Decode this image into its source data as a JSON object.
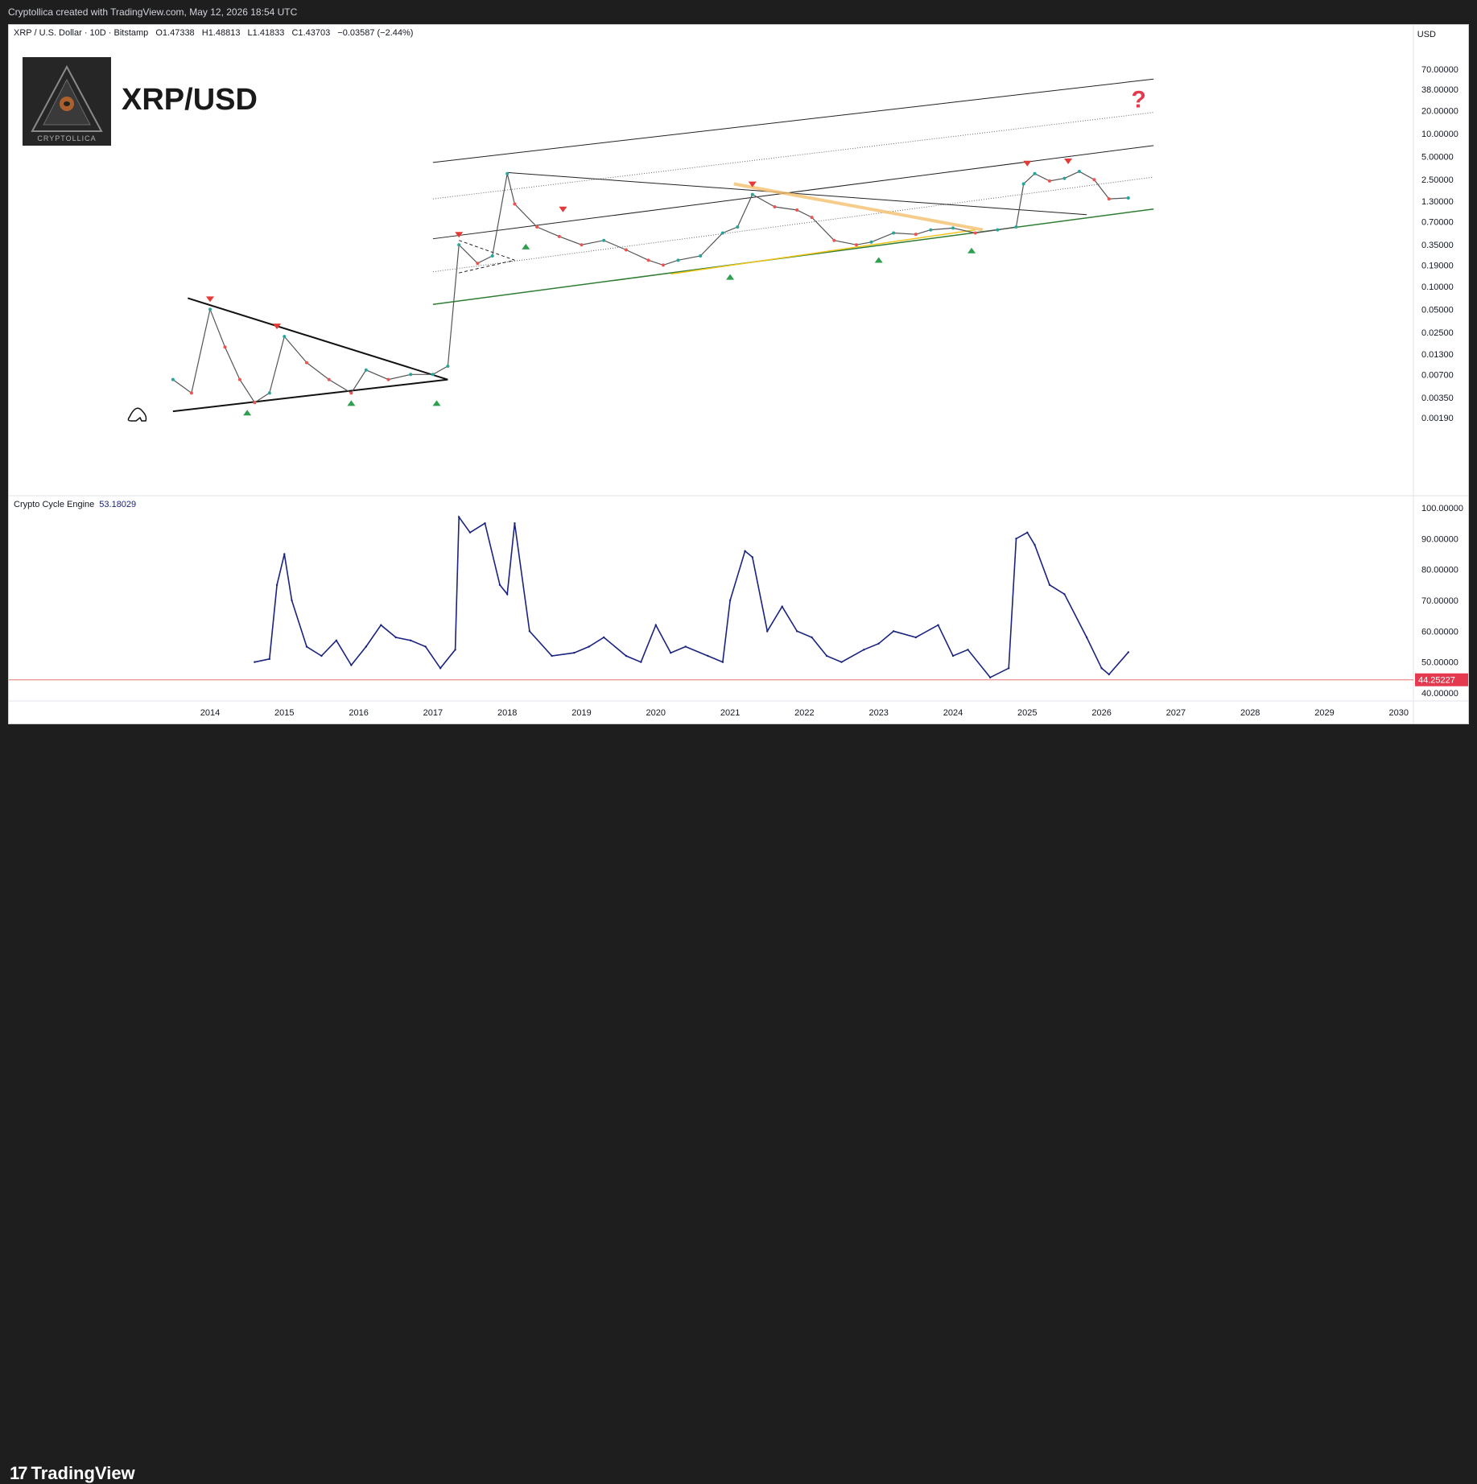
{
  "header": {
    "credit": "Cryptollica created with TradingView.com, May 12, 2026 18:54 UTC"
  },
  "symbol": {
    "name": "XRP / U.S. Dollar · 10D · Bitstamp",
    "open": "O1.47338",
    "high": "H1.48813",
    "low": "L1.41833",
    "close": "C1.43703",
    "change": "−0.03587 (−2.44%)"
  },
  "currency": "USD",
  "brand": {
    "title": "XRP/USD",
    "logo_text": "CRYPTOLLICA"
  },
  "annotation": {
    "question_mark": "?"
  },
  "colors": {
    "up": "#26a69a",
    "down": "#ef5350",
    "oscillator": "#1a237e",
    "baseline": "#e57373",
    "orange_trend": "#f5c06e",
    "support_green": "#2e7d32",
    "arrow_up": "#2e9e4f",
    "arrow_down": "#e53935"
  },
  "oscillator": {
    "name": "Crypto Cycle Engine",
    "value": "53.18029",
    "baseline_label": "44.25227"
  },
  "footer": {
    "brand": "TradingView"
  },
  "chart_data": [
    {
      "type": "line",
      "title": "XRP / U.S. Dollar · 10D · Bitstamp",
      "y_scale": "log",
      "ylim": [
        0.0015,
        70
      ],
      "ytick_labels": [
        "0.00190",
        "0.00350",
        "0.00700",
        "0.01300",
        "0.02500",
        "0.05000",
        "0.10000",
        "0.19000",
        "0.35000",
        "0.70000",
        "1.30000",
        "2.50000",
        "5.00000",
        "10.00000",
        "20.00000",
        "38.00000",
        "70.00000"
      ],
      "xtick_labels": [
        "2014",
        "2015",
        "2016",
        "2017",
        "2018",
        "2019",
        "2020",
        "2021",
        "2022",
        "2023",
        "2024",
        "2025",
        "2026",
        "2027",
        "2028",
        "2029",
        "2030"
      ],
      "series": [
        {
          "name": "XRP/USD",
          "x": [
            2013.5,
            2013.75,
            2014.0,
            2014.2,
            2014.4,
            2014.6,
            2014.8,
            2015.0,
            2015.3,
            2015.6,
            2015.9,
            2016.1,
            2016.4,
            2016.7,
            2017.0,
            2017.2,
            2017.35,
            2017.6,
            2017.8,
            2018.0,
            2018.1,
            2018.4,
            2018.7,
            2019.0,
            2019.3,
            2019.6,
            2019.9,
            2020.1,
            2020.3,
            2020.6,
            2020.9,
            2021.1,
            2021.3,
            2021.6,
            2021.9,
            2022.1,
            2022.4,
            2022.7,
            2022.9,
            2023.2,
            2023.5,
            2023.7,
            2024.0,
            2024.3,
            2024.6,
            2024.85,
            2024.95,
            2025.1,
            2025.3,
            2025.5,
            2025.7,
            2025.9,
            2026.1,
            2026.36
          ],
          "values": [
            0.006,
            0.004,
            0.05,
            0.016,
            0.006,
            0.003,
            0.004,
            0.022,
            0.01,
            0.006,
            0.004,
            0.008,
            0.006,
            0.007,
            0.007,
            0.009,
            0.35,
            0.2,
            0.25,
            3.0,
            1.2,
            0.6,
            0.45,
            0.35,
            0.4,
            0.3,
            0.22,
            0.19,
            0.22,
            0.25,
            0.5,
            0.6,
            1.6,
            1.1,
            1.0,
            0.8,
            0.4,
            0.35,
            0.38,
            0.5,
            0.48,
            0.55,
            0.58,
            0.5,
            0.55,
            0.6,
            2.2,
            3.0,
            2.4,
            2.6,
            3.2,
            2.5,
            1.4,
            1.44
          ]
        }
      ]
    },
    {
      "type": "line",
      "title": "Crypto Cycle Engine",
      "ylim": [
        40,
        100
      ],
      "ytick_labels": [
        "40.00000",
        "50.00000",
        "60.00000",
        "70.00000",
        "80.00000",
        "90.00000",
        "100.00000"
      ],
      "baseline": 44.25227,
      "series": [
        {
          "name": "Crypto Cycle Engine",
          "x": [
            2014.6,
            2014.8,
            2014.9,
            2015.0,
            2015.1,
            2015.3,
            2015.5,
            2015.7,
            2015.9,
            2016.1,
            2016.3,
            2016.5,
            2016.7,
            2016.9,
            2017.1,
            2017.3,
            2017.35,
            2017.5,
            2017.7,
            2017.9,
            2018.0,
            2018.1,
            2018.3,
            2018.6,
            2018.9,
            2019.1,
            2019.3,
            2019.6,
            2019.8,
            2020.0,
            2020.2,
            2020.4,
            2020.7,
            2020.9,
            2021.0,
            2021.2,
            2021.3,
            2021.5,
            2021.7,
            2021.9,
            2022.1,
            2022.3,
            2022.5,
            2022.8,
            2023.0,
            2023.2,
            2023.5,
            2023.8,
            2024.0,
            2024.2,
            2024.5,
            2024.75,
            2024.85,
            2025.0,
            2025.1,
            2025.3,
            2025.5,
            2025.8,
            2026.0,
            2026.1,
            2026.36
          ],
          "values": [
            50,
            51,
            75,
            85,
            70,
            55,
            52,
            57,
            49,
            55,
            62,
            58,
            57,
            55,
            48,
            54,
            97,
            92,
            95,
            75,
            72,
            95,
            60,
            52,
            53,
            55,
            58,
            52,
            50,
            62,
            53,
            55,
            52,
            50,
            70,
            86,
            84,
            60,
            68,
            60,
            58,
            52,
            50,
            54,
            56,
            60,
            58,
            62,
            52,
            54,
            45,
            48,
            90,
            92,
            88,
            75,
            72,
            58,
            48,
            46,
            53.18
          ]
        }
      ]
    }
  ]
}
